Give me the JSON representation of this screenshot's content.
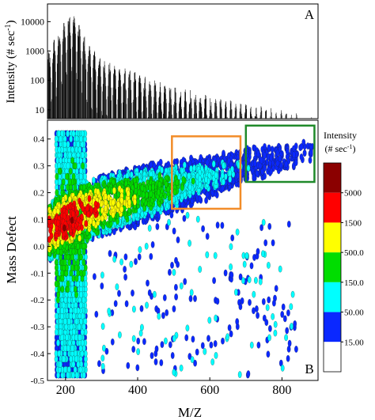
{
  "panel_a": {
    "letter": "A",
    "ylabel": "Intensity (# sec",
    "ylabel_sup": "-1",
    "ylabel_end": ")"
  },
  "panel_b": {
    "letter": "B",
    "ylabel": "Mass Defect",
    "xlabel": "M/Z"
  },
  "colorbar": {
    "title_line1": "Intensity",
    "title_line2": "(# sec",
    "title_sup": "-1",
    "title_end": ")"
  },
  "chart_data": [
    {
      "type": "bar",
      "title": "",
      "panel": "A",
      "xlabel": "",
      "ylabel": "Intensity (# sec-1)",
      "y_scale": "log",
      "xlim": [
        150,
        900
      ],
      "ylim": [
        5,
        40000
      ],
      "ytick_labels": [
        "10",
        "100",
        "1000",
        "10000"
      ],
      "ytick_values": [
        10,
        100,
        1000,
        10000
      ],
      "grid": false,
      "envelope": {
        "x": [
          150,
          170,
          190,
          210,
          230,
          250,
          270,
          300,
          330,
          360,
          400,
          440,
          480,
          520,
          560,
          600,
          640,
          680,
          720,
          760,
          800,
          840,
          880
        ],
        "peak_intensity": [
          800,
          3000,
          8000,
          25000,
          18000,
          4000,
          1500,
          700,
          400,
          300,
          200,
          120,
          80,
          60,
          45,
          30,
          25,
          20,
          15,
          12,
          10,
          8,
          6
        ]
      }
    },
    {
      "type": "heatmap",
      "title": "",
      "panel": "B",
      "xlabel": "M/Z",
      "ylabel": "Mass Defect",
      "xlim": [
        150,
        900
      ],
      "ylim": [
        -0.5,
        0.47
      ],
      "xtick_labels": [
        "200",
        "400",
        "600",
        "800"
      ],
      "xtick_values": [
        200,
        400,
        600,
        800
      ],
      "ytick_labels": [
        "-0.5",
        "-0.4",
        "-0.3",
        "-0.2",
        "-0.1",
        "0.0",
        "0.1",
        "0.2",
        "0.3",
        "0.4"
      ],
      "ytick_values": [
        -0.5,
        -0.4,
        -0.3,
        -0.2,
        -0.1,
        0.0,
        0.1,
        0.2,
        0.3,
        0.4
      ],
      "grid": false,
      "colorbar": {
        "levels": [
          "15.00",
          "50.00",
          "150.0",
          "500.0",
          "1500",
          "5000"
        ],
        "level_values": [
          15,
          50,
          150,
          500,
          1500,
          5000
        ],
        "colors": [
          "#ffffff",
          "#0a28ff",
          "#00ffff",
          "#00dd00",
          "#ffff00",
          "#ff0000",
          "#8b0000"
        ]
      },
      "trend": {
        "x": [
          160,
          200,
          300,
          400,
          500,
          600,
          700,
          800,
          870
        ],
        "mass_defect": [
          0.06,
          0.09,
          0.15,
          0.19,
          0.22,
          0.26,
          0.3,
          0.33,
          0.36
        ],
        "peak_intensity": [
          3000,
          6000,
          1500,
          700,
          250,
          120,
          60,
          40,
          25
        ]
      },
      "highlight_boxes": [
        {
          "color": "#f28c28",
          "x_range": [
            495,
            685
          ],
          "mass_defect_range": [
            0.14,
            0.41
          ]
        },
        {
          "color": "#1f8a2a",
          "x_range": [
            700,
            890
          ],
          "mass_defect_range": [
            0.24,
            0.45
          ]
        }
      ]
    }
  ]
}
